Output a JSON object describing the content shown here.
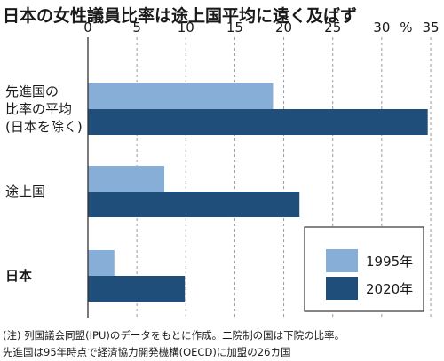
{
  "chart_data": {
    "type": "bar",
    "orientation": "horizontal",
    "title": "日本の女性議員比率は途上国平均に遠く及ばず",
    "unit": "%",
    "xlim": [
      0,
      35
    ],
    "ticks": [
      "0",
      "5",
      "10",
      "15",
      "20",
      "25",
      "30",
      "35"
    ],
    "categories": [
      [
        "先進国の",
        "比率の平均",
        "(日本を除く)"
      ],
      [
        "途上国"
      ],
      [
        "日本"
      ]
    ],
    "series": [
      {
        "name": "1995年",
        "color": "#87aed6",
        "values": [
          18.9,
          7.8,
          2.7
        ]
      },
      {
        "name": "2020年",
        "color": "#1f4e7a",
        "values": [
          34.7,
          21.6,
          9.9
        ]
      }
    ],
    "grid": true,
    "legend_position": "bottom-right"
  },
  "notes": [
    "(注) 列国議会同盟(IPU)のデータをもとに作成。二院制の国は下院の比率。",
    "先進国は95年時点で経済協力開発機構(OECD)に加盟の26カ国"
  ]
}
